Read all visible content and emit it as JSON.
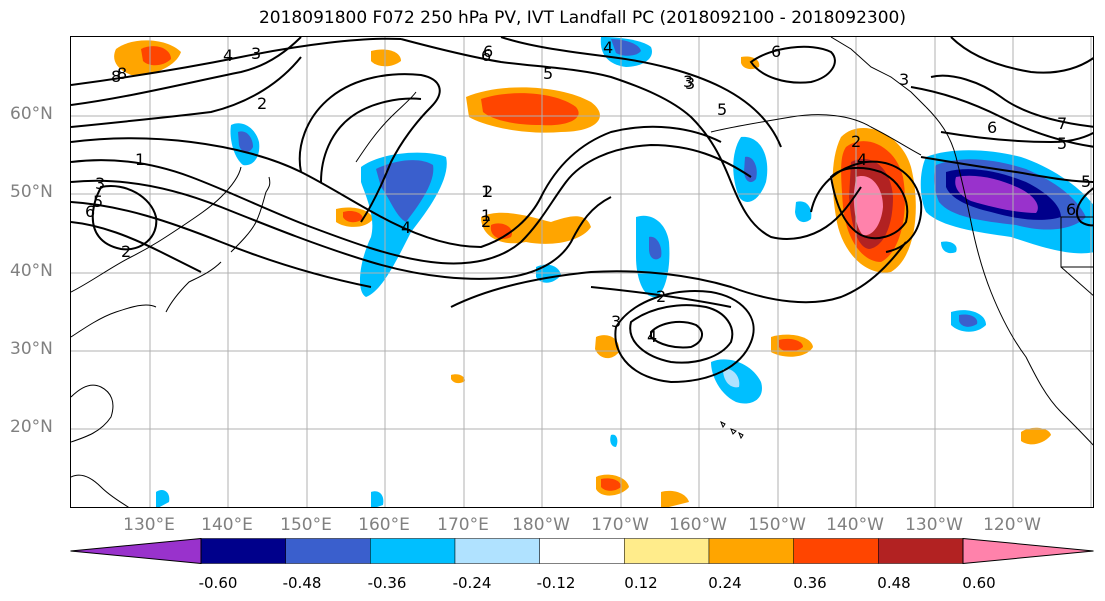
{
  "title": "2018091800 F072 250 hPa PV, IVT Landfall PC (2018092100 - 2018092300)",
  "lat_labels": [
    "60°N",
    "50°N",
    "40°N",
    "30°N",
    "20°N"
  ],
  "lon_labels": [
    "130°E",
    "140°E",
    "150°E",
    "160°E",
    "170°E",
    "180°W",
    "170°W",
    "160°W",
    "150°W",
    "140°W",
    "130°W",
    "120°W"
  ],
  "colorbar": {
    "colors": [
      "#9932CC",
      "#00008B",
      "#3A5FCD",
      "#00BFFF",
      "#B0E2FF",
      "#FFFFFF",
      "#FFEC8B",
      "#FFA500",
      "#FF4500",
      "#B22222",
      "#FF82AB"
    ],
    "tick_labels": [
      "-0.60",
      "-0.48",
      "-0.36",
      "-0.24",
      "-0.12",
      "0.12",
      "0.24",
      "0.36",
      "0.48",
      "0.60"
    ]
  },
  "contour_labels": [
    "8",
    "4",
    "3",
    "2",
    "1",
    "3",
    "5",
    "6",
    "2",
    "1",
    "6",
    "4",
    "5",
    "3",
    "2",
    "3",
    "4",
    "6",
    "4",
    "2",
    "3",
    "7",
    "6",
    "5",
    "5",
    "6",
    "3",
    "2",
    "5",
    "4",
    "2",
    "6",
    "1",
    "8"
  ],
  "legend_colors": {
    "positive_strong": "#FF82AB",
    "negative_strong": "#9932CC"
  }
}
